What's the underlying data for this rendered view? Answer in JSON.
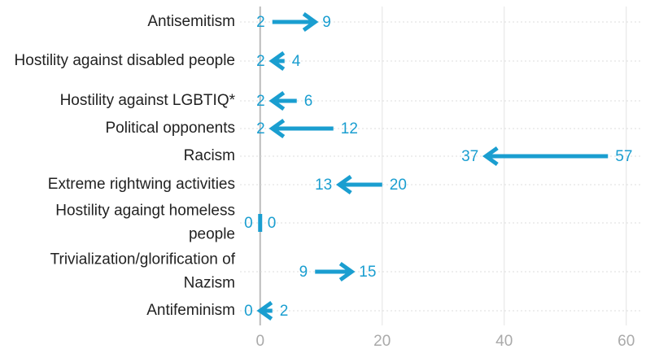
{
  "chart_data": {
    "type": "arrow",
    "categories": [
      "Antisemitism",
      "Hostility against disabled people",
      "Hostility against LGBTIQ*",
      "Political opponents",
      "Racism",
      "Extreme rightwing activities",
      "Hostility againgt homeless people",
      "Trivialization/glorification of Nazism",
      "Antifeminism"
    ],
    "values_from": [
      2,
      4,
      6,
      12,
      57,
      20,
      0,
      9,
      2
    ],
    "values_to": [
      9,
      2,
      2,
      2,
      37,
      13,
      0,
      15,
      0
    ],
    "color": "#1a9ed0",
    "xlim": [
      -3.3,
      62.7
    ],
    "xticks": [
      0,
      20,
      40,
      60
    ],
    "grid": true
  }
}
